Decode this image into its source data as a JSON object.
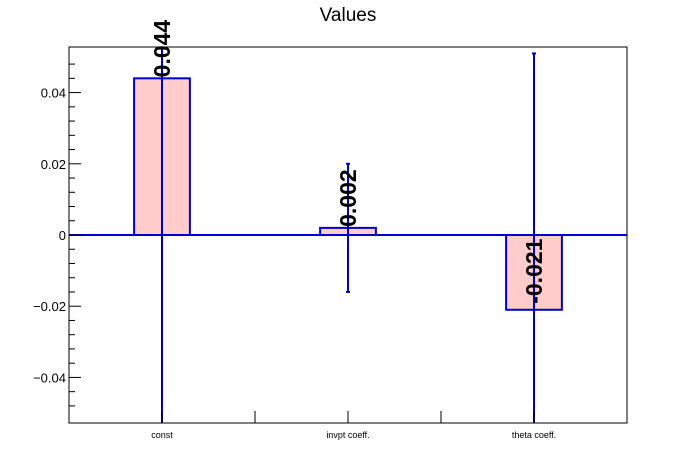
{
  "title": "Values",
  "chart_data": {
    "type": "bar",
    "title": "Values",
    "xlabel": "",
    "ylabel": "",
    "categories": [
      "const",
      "invpt coeff.",
      "theta coeff."
    ],
    "values": [
      0.044,
      0.002,
      -0.021
    ],
    "value_labels": [
      "0.044",
      "0.002",
      "-0.021"
    ],
    "errors": [
      0.099,
      0.018,
      0.072
    ],
    "ylim": [
      -0.0528,
      0.0528
    ],
    "yticks": [
      -0.04,
      -0.02,
      0,
      0.02,
      0.04
    ],
    "ytick_labels": [
      "−0.04",
      "−0.02",
      "0",
      "0.02",
      "0.04"
    ],
    "grid": false,
    "colors": {
      "bar_fill": "#ffcccc",
      "bar_edge": "#0000cc",
      "error_bar": "#0000cc",
      "zero_line": "#0000cc",
      "axis": "#000000"
    }
  }
}
